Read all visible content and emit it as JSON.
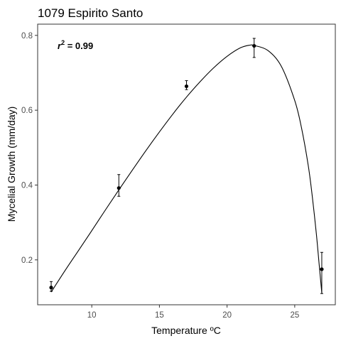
{
  "chart_data": {
    "type": "scatter",
    "title": "1079 Espirito Santo",
    "xlabel": "Temperature ºC",
    "ylabel": "Mycelial Growth (mm/day)",
    "xlim": [
      6.0,
      28.0
    ],
    "ylim": [
      0.08,
      0.83
    ],
    "xticks": [
      10,
      15,
      20,
      25
    ],
    "yticks": [
      0.2,
      0.4,
      0.6,
      0.8
    ],
    "xtick_labels": [
      "10",
      "15",
      "20",
      "25"
    ],
    "ytick_labels": [
      "0.2",
      "0.4",
      "0.6",
      "0.8"
    ],
    "grid": false,
    "annotation": {
      "r": "r",
      "exp": "2",
      "rest": " = 0.99"
    },
    "points": [
      {
        "x": 7,
        "y": 0.126,
        "err_low": 0.116,
        "err_high": 0.142
      },
      {
        "x": 12,
        "y": 0.392,
        "err_low": 0.37,
        "err_high": 0.428
      },
      {
        "x": 17,
        "y": 0.664,
        "err_low": 0.655,
        "err_high": 0.679
      },
      {
        "x": 22,
        "y": 0.772,
        "err_low": 0.741,
        "err_high": 0.792
      },
      {
        "x": 27,
        "y": 0.175,
        "err_low": 0.11,
        "err_high": 0.22
      }
    ],
    "fit_curve": {
      "x": [
        7.0,
        8.0,
        9.0,
        10.0,
        11.0,
        12.0,
        13.0,
        14.0,
        15.0,
        16.0,
        17.0,
        18.0,
        19.0,
        20.0,
        21.0,
        21.7,
        22.0,
        23.0,
        24.0,
        25.0,
        25.5,
        26.0,
        26.3,
        26.6,
        26.8,
        27.0
      ],
      "y": [
        0.114,
        0.17,
        0.224,
        0.278,
        0.333,
        0.387,
        0.44,
        0.492,
        0.542,
        0.59,
        0.635,
        0.676,
        0.713,
        0.744,
        0.767,
        0.774,
        0.773,
        0.76,
        0.718,
        0.626,
        0.553,
        0.452,
        0.369,
        0.269,
        0.19,
        0.112
      ]
    }
  }
}
